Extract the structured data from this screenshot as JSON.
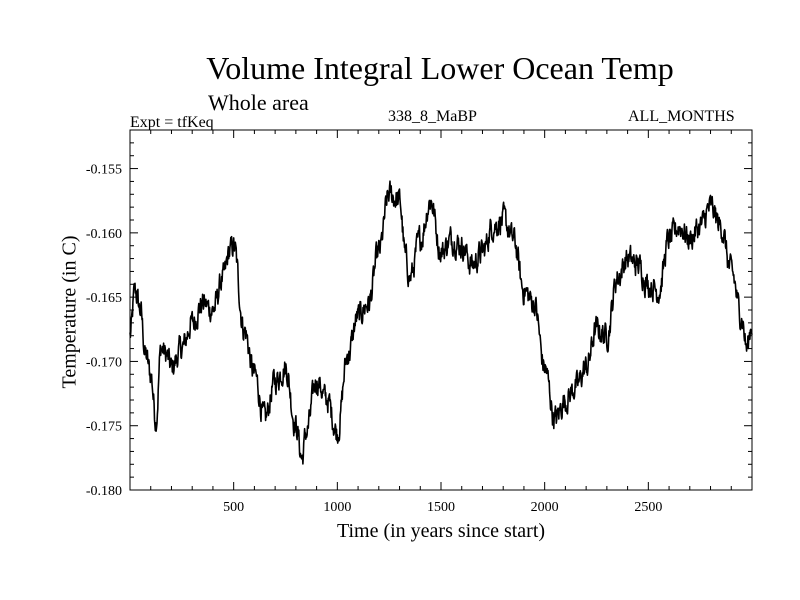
{
  "chart_data": {
    "type": "line",
    "title": "Volume Integral Lower Ocean Temp",
    "subtitle": "Whole area",
    "left_label": "Expt = tfKeq",
    "center_label": "338_8_MaBP",
    "right_label": "ALL_MONTHS",
    "xlabel": "Time (in years since start)",
    "ylabel": "Temperature (in C)",
    "xlim": [
      0,
      3000
    ],
    "ylim": [
      -0.18,
      -0.152
    ],
    "xticks": [
      500,
      1000,
      1500,
      2000,
      2500
    ],
    "xtick_labels": [
      "500",
      "1000",
      "1500",
      "2000",
      "2500"
    ],
    "yticks": [
      -0.18,
      -0.175,
      -0.17,
      -0.165,
      -0.16,
      -0.155
    ],
    "ytick_labels": [
      "-0.180",
      "-0.175",
      "-0.170",
      "-0.165",
      "-0.160",
      "-0.155"
    ],
    "grid": false,
    "series": [
      {
        "x": [
          0,
          25,
          50,
          75,
          100,
          125,
          150,
          175,
          200,
          250,
          300,
          350,
          400,
          450,
          480,
          500,
          550,
          600,
          650,
          700,
          750,
          800,
          830,
          850,
          900,
          950,
          1000,
          1050,
          1100,
          1150,
          1200,
          1250,
          1300,
          1330,
          1350,
          1400,
          1450,
          1500,
          1550,
          1600,
          1650,
          1700,
          1750,
          1800,
          1850,
          1900,
          1950,
          2000,
          2050,
          2100,
          2150,
          2200,
          2250,
          2300,
          2350,
          2400,
          2450,
          2500,
          2550,
          2600,
          2650,
          2700,
          2750,
          2800,
          2850,
          2900,
          2950,
          2975,
          3000
        ],
        "values": [
          -0.168,
          -0.1645,
          -0.166,
          -0.1695,
          -0.171,
          -0.1745,
          -0.169,
          -0.1695,
          -0.1705,
          -0.169,
          -0.167,
          -0.1655,
          -0.166,
          -0.1635,
          -0.1615,
          -0.161,
          -0.1675,
          -0.171,
          -0.1745,
          -0.1715,
          -0.1705,
          -0.175,
          -0.1775,
          -0.1755,
          -0.1715,
          -0.173,
          -0.1755,
          -0.1695,
          -0.1665,
          -0.1655,
          -0.1615,
          -0.157,
          -0.1575,
          -0.162,
          -0.1635,
          -0.1605,
          -0.1575,
          -0.1615,
          -0.1605,
          -0.161,
          -0.1625,
          -0.1615,
          -0.1595,
          -0.159,
          -0.1605,
          -0.1645,
          -0.1655,
          -0.1705,
          -0.1745,
          -0.173,
          -0.172,
          -0.1705,
          -0.1675,
          -0.168,
          -0.1635,
          -0.162,
          -0.1625,
          -0.164,
          -0.1645,
          -0.1605,
          -0.1595,
          -0.1605,
          -0.1595,
          -0.158,
          -0.1595,
          -0.163,
          -0.1665,
          -0.169,
          -0.167
        ]
      }
    ]
  }
}
